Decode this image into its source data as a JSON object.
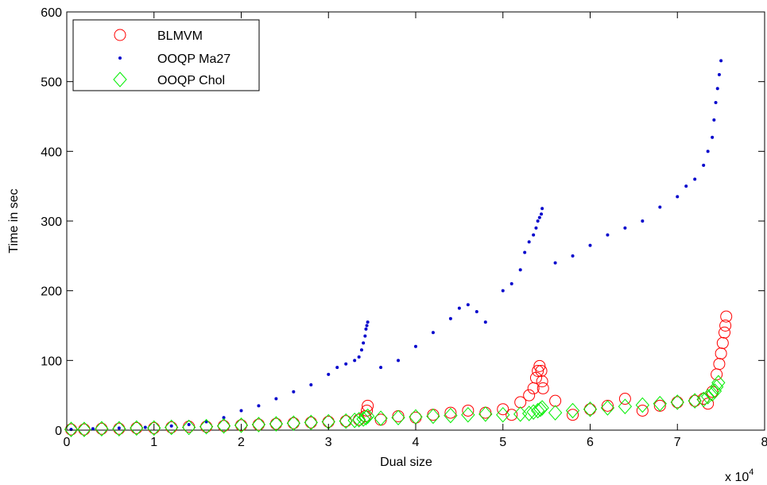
{
  "chart_data": {
    "type": "scatter",
    "title": "",
    "xlabel": "Dual size",
    "ylabel": "Time in sec",
    "x_multiplier_label": "x 10",
    "x_multiplier_exponent": "4",
    "xlim": [
      0,
      8
    ],
    "ylim": [
      0,
      600
    ],
    "xticks": [
      "0",
      "1",
      "2",
      "3",
      "4",
      "5",
      "6",
      "7",
      "8"
    ],
    "yticks": [
      "0",
      "100",
      "200",
      "300",
      "400",
      "500",
      "600"
    ],
    "grid": false,
    "legend_position": "top-left",
    "series": [
      {
        "name": "BLMVM",
        "marker": "circle-open",
        "color": "#ff0000",
        "x": [
          0.05,
          0.2,
          0.4,
          0.6,
          0.8,
          1.0,
          1.2,
          1.4,
          1.6,
          1.8,
          2.0,
          2.2,
          2.4,
          2.6,
          2.8,
          3.0,
          3.2,
          3.35,
          3.42,
          3.44,
          3.45,
          3.6,
          3.8,
          4.0,
          4.2,
          4.4,
          4.6,
          4.8,
          5.0,
          5.1,
          5.2,
          5.3,
          5.35,
          5.38,
          5.4,
          5.42,
          5.44,
          5.45,
          5.46,
          5.6,
          5.8,
          6.0,
          6.2,
          6.4,
          6.6,
          6.8,
          7.0,
          7.2,
          7.3,
          7.35,
          7.4,
          7.45,
          7.48,
          7.5,
          7.52,
          7.54,
          7.55,
          7.56
        ],
        "y": [
          1,
          1,
          2,
          2,
          3,
          3,
          4,
          5,
          5,
          6,
          7,
          8,
          9,
          10,
          11,
          12,
          13,
          15,
          20,
          28,
          35,
          15,
          20,
          18,
          22,
          25,
          28,
          25,
          30,
          22,
          40,
          50,
          60,
          75,
          85,
          92,
          85,
          70,
          60,
          42,
          22,
          30,
          35,
          45,
          28,
          35,
          40,
          42,
          45,
          38,
          55,
          80,
          95,
          110,
          125,
          140,
          150,
          163
        ],
        "note": "approximate sampled values read from the plot"
      },
      {
        "name": "OOQP Ma27",
        "marker": "dot",
        "color": "#0000cc",
        "x": [
          0.05,
          0.3,
          0.6,
          0.9,
          1.2,
          1.4,
          1.6,
          1.8,
          2.0,
          2.2,
          2.4,
          2.6,
          2.8,
          3.0,
          3.1,
          3.2,
          3.3,
          3.35,
          3.38,
          3.4,
          3.42,
          3.43,
          3.44,
          3.45,
          3.6,
          3.8,
          4.0,
          4.2,
          4.4,
          4.5,
          4.6,
          4.7,
          4.8,
          5.0,
          5.1,
          5.2,
          5.25,
          5.3,
          5.35,
          5.38,
          5.4,
          5.42,
          5.44,
          5.45,
          5.6,
          5.8,
          6.0,
          6.2,
          6.4,
          6.6,
          6.8,
          7.0,
          7.1,
          7.2,
          7.3,
          7.35,
          7.4,
          7.42,
          7.44,
          7.46,
          7.48,
          7.5
        ],
        "y": [
          1,
          2,
          3,
          4,
          6,
          8,
          12,
          18,
          28,
          35,
          45,
          55,
          65,
          80,
          90,
          95,
          100,
          105,
          115,
          125,
          135,
          145,
          150,
          155,
          90,
          100,
          120,
          140,
          160,
          175,
          180,
          170,
          155,
          200,
          210,
          230,
          255,
          270,
          280,
          290,
          300,
          305,
          310,
          318,
          240,
          250,
          265,
          280,
          290,
          300,
          320,
          335,
          350,
          360,
          380,
          400,
          420,
          445,
          470,
          490,
          510,
          530
        ],
        "note": "approximate sampled values read from the plot"
      },
      {
        "name": "OOQP Chol",
        "marker": "diamond-open",
        "color": "#00ee00",
        "x": [
          0.05,
          0.2,
          0.4,
          0.6,
          0.8,
          1.0,
          1.2,
          1.4,
          1.6,
          1.8,
          2.0,
          2.2,
          2.4,
          2.6,
          2.8,
          3.0,
          3.2,
          3.3,
          3.35,
          3.4,
          3.43,
          3.45,
          3.6,
          3.8,
          4.0,
          4.2,
          4.4,
          4.6,
          4.8,
          5.0,
          5.2,
          5.3,
          5.35,
          5.4,
          5.43,
          5.45,
          5.6,
          5.8,
          6.0,
          6.2,
          6.4,
          6.6,
          6.8,
          7.0,
          7.2,
          7.3,
          7.35,
          7.4,
          7.43,
          7.45,
          7.47
        ],
        "y": [
          1,
          1,
          2,
          2,
          3,
          3,
          4,
          4,
          5,
          6,
          7,
          8,
          9,
          10,
          11,
          12,
          13,
          14,
          15,
          16,
          18,
          20,
          17,
          18,
          19,
          20,
          21,
          22,
          23,
          22,
          23,
          24,
          26,
          28,
          30,
          32,
          25,
          28,
          30,
          32,
          34,
          36,
          38,
          40,
          42,
          44,
          48,
          52,
          56,
          62,
          68
        ],
        "note": "approximate sampled values read from the plot"
      }
    ]
  }
}
